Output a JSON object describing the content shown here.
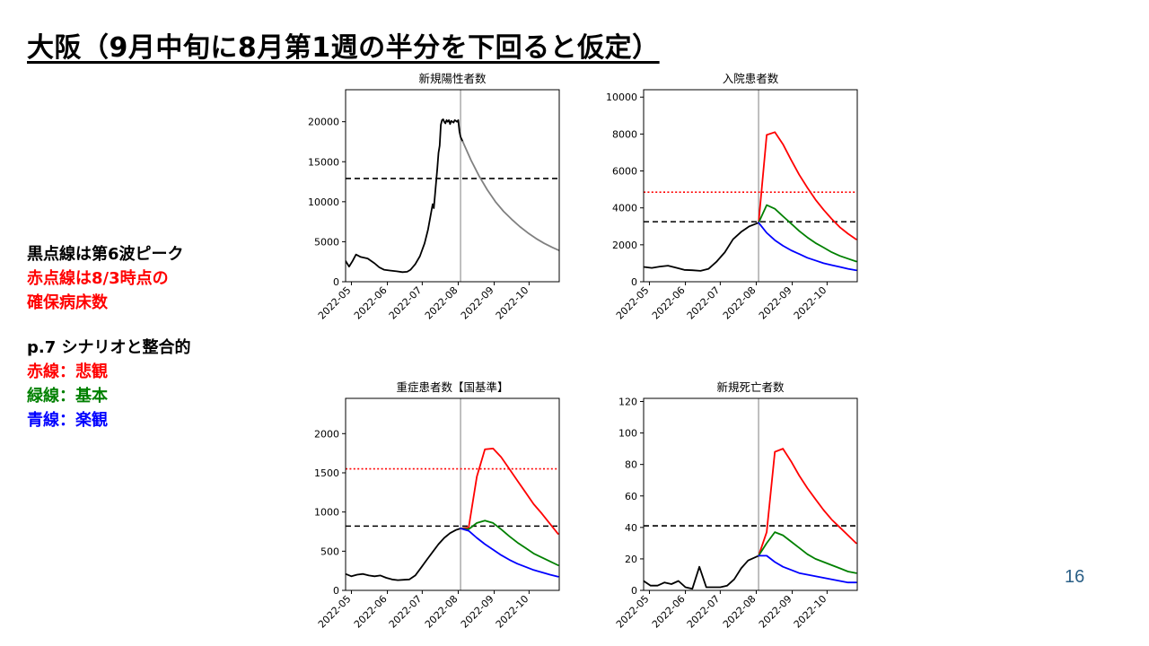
{
  "title": "大阪（9月中旬に8月第1週の半分を下回ると仮定）",
  "notes": {
    "blocks": [
      [
        {
          "text": "黒点線は第6波ピーク",
          "color": "#000000"
        },
        {
          "text": "赤点線は8/3時点の",
          "color": "#ff0000"
        },
        {
          "text": "確保病床数",
          "color": "#ff0000"
        }
      ],
      [
        {
          "text": "p.7 シナリオと整合的",
          "color": "#000000"
        },
        {
          "text": "赤線：悲観",
          "color": "#ff0000"
        },
        {
          "text": "緑線：基本",
          "color": "#008000"
        },
        {
          "text": "青線：楽観",
          "color": "#0000ff"
        }
      ]
    ]
  },
  "page_number": "16",
  "colors": {
    "actual": "#000000",
    "projection": "#808080",
    "pessimistic": "#ff0000",
    "base": "#008000",
    "optimistic": "#0000ff",
    "peak_line": "#000000",
    "bed_capacity_line": "#ff0000",
    "current_date_line": "#808080"
  },
  "chart_data": [
    {
      "id": "new-cases",
      "type": "line",
      "title": "新規陽性者数",
      "xlabel": "",
      "ylabel": "",
      "ylim": [
        0,
        24000
      ],
      "yticks": [
        0,
        5000,
        10000,
        15000,
        20000
      ],
      "xlim": [
        "2022-04-26",
        "2022-10-27"
      ],
      "xticks": [
        "2022-05-01",
        "2022-06-01",
        "2022-07-01",
        "2022-08-01",
        "2022-09-01",
        "2022-10-01"
      ],
      "xtick_labels": [
        "2022-05",
        "2022-06",
        "2022-07",
        "2022-08",
        "2022-09",
        "2022-10"
      ],
      "current_date": "2022-08-03",
      "hlines": [
        {
          "value": 12900,
          "style": "dashed",
          "color_key": "peak_line"
        }
      ],
      "series": [
        {
          "role": "actual",
          "color_key": "actual",
          "x": [
            "2022-04-26",
            "2022-04-29",
            "2022-05-02",
            "2022-05-05",
            "2022-05-09",
            "2022-05-15",
            "2022-05-21",
            "2022-05-25",
            "2022-05-29",
            "2022-06-03",
            "2022-06-09",
            "2022-06-14",
            "2022-06-18",
            "2022-06-21",
            "2022-06-25",
            "2022-06-29",
            "2022-07-03",
            "2022-07-06",
            "2022-07-09",
            "2022-07-10",
            "2022-07-11",
            "2022-07-14",
            "2022-07-15",
            "2022-07-16",
            "2022-07-17",
            "2022-07-18",
            "2022-07-19",
            "2022-07-20",
            "2022-07-21",
            "2022-07-22",
            "2022-07-23",
            "2022-07-24",
            "2022-07-25",
            "2022-07-26",
            "2022-07-27",
            "2022-07-28",
            "2022-07-29",
            "2022-07-30",
            "2022-07-31",
            "2022-08-01",
            "2022-08-02",
            "2022-08-03",
            "2022-08-05"
          ],
          "y": [
            2600,
            1900,
            2600,
            3400,
            3100,
            2900,
            2300,
            1800,
            1500,
            1400,
            1300,
            1200,
            1250,
            1500,
            2200,
            3200,
            4800,
            6500,
            8900,
            9700,
            9200,
            14200,
            16100,
            17000,
            19600,
            20200,
            20300,
            20000,
            19800,
            20200,
            20000,
            20200,
            19700,
            20100,
            20000,
            19900,
            20200,
            20100,
            20000,
            20200,
            18800,
            18100,
            17500
          ]
        },
        {
          "role": "projection",
          "color_key": "projection",
          "x": [
            "2022-08-05",
            "2022-08-12",
            "2022-08-19",
            "2022-08-26",
            "2022-09-02",
            "2022-09-09",
            "2022-09-16",
            "2022-09-23",
            "2022-09-30",
            "2022-10-07",
            "2022-10-14",
            "2022-10-21",
            "2022-10-27"
          ],
          "y": [
            17500,
            15200,
            13200,
            11500,
            10000,
            8800,
            7800,
            6900,
            6100,
            5400,
            4800,
            4300,
            3900
          ]
        }
      ]
    },
    {
      "id": "hospitalized",
      "type": "line",
      "title": "入院患者数",
      "xlabel": "",
      "ylabel": "",
      "ylim": [
        0,
        10400
      ],
      "yticks": [
        0,
        2000,
        4000,
        6000,
        8000,
        10000
      ],
      "xlim": [
        "2022-04-26",
        "2022-10-27"
      ],
      "xticks": [
        "2022-05-01",
        "2022-06-01",
        "2022-07-01",
        "2022-08-01",
        "2022-09-01",
        "2022-10-01"
      ],
      "xtick_labels": [
        "2022-05",
        "2022-06",
        "2022-07",
        "2022-08",
        "2022-09",
        "2022-10"
      ],
      "current_date": "2022-08-03",
      "hlines": [
        {
          "value": 4850,
          "style": "dotted",
          "color_key": "bed_capacity_line"
        },
        {
          "value": 3250,
          "style": "dashed",
          "color_key": "peak_line"
        }
      ],
      "series": [
        {
          "role": "actual",
          "color_key": "actual",
          "x": [
            "2022-04-26",
            "2022-05-03",
            "2022-05-10",
            "2022-05-17",
            "2022-05-24",
            "2022-05-31",
            "2022-06-07",
            "2022-06-14",
            "2022-06-21",
            "2022-06-28",
            "2022-07-05",
            "2022-07-12",
            "2022-07-19",
            "2022-07-26",
            "2022-08-03"
          ],
          "y": [
            800,
            750,
            820,
            870,
            760,
            640,
            620,
            590,
            700,
            1100,
            1600,
            2300,
            2700,
            3000,
            3200
          ]
        },
        {
          "role": "pessimistic",
          "color_key": "pessimistic",
          "x": [
            "2022-08-03",
            "2022-08-10",
            "2022-08-17",
            "2022-08-24",
            "2022-08-31",
            "2022-09-07",
            "2022-09-14",
            "2022-09-21",
            "2022-09-28",
            "2022-10-05",
            "2022-10-12",
            "2022-10-19",
            "2022-10-26"
          ],
          "y": [
            3200,
            7950,
            8100,
            7450,
            6600,
            5800,
            5100,
            4450,
            3900,
            3400,
            2950,
            2600,
            2300
          ]
        },
        {
          "role": "base",
          "color_key": "base",
          "x": [
            "2022-08-03",
            "2022-08-10",
            "2022-08-17",
            "2022-08-24",
            "2022-08-31",
            "2022-09-07",
            "2022-09-14",
            "2022-09-21",
            "2022-09-28",
            "2022-10-05",
            "2022-10-12",
            "2022-10-19",
            "2022-10-26"
          ],
          "y": [
            3200,
            4150,
            3950,
            3550,
            3150,
            2750,
            2400,
            2100,
            1850,
            1600,
            1400,
            1250,
            1100
          ]
        },
        {
          "role": "optimistic",
          "color_key": "optimistic",
          "x": [
            "2022-08-03",
            "2022-08-10",
            "2022-08-17",
            "2022-08-24",
            "2022-08-31",
            "2022-09-07",
            "2022-09-14",
            "2022-09-21",
            "2022-09-28",
            "2022-10-05",
            "2022-10-12",
            "2022-10-19",
            "2022-10-26"
          ],
          "y": [
            3200,
            2650,
            2250,
            1950,
            1700,
            1500,
            1300,
            1150,
            1000,
            900,
            800,
            700,
            620
          ]
        }
      ]
    },
    {
      "id": "severe-patients",
      "type": "line",
      "title": "重症患者数【国基準】",
      "xlabel": "",
      "ylabel": "",
      "ylim": [
        0,
        2450
      ],
      "yticks": [
        0,
        500,
        1000,
        1500,
        2000
      ],
      "xlim": [
        "2022-04-26",
        "2022-10-27"
      ],
      "xticks": [
        "2022-05-01",
        "2022-06-01",
        "2022-07-01",
        "2022-08-01",
        "2022-09-01",
        "2022-10-01"
      ],
      "xtick_labels": [
        "2022-05",
        "2022-06",
        "2022-07",
        "2022-08",
        "2022-09",
        "2022-10"
      ],
      "current_date": "2022-08-03",
      "hlines": [
        {
          "value": 1550,
          "style": "dotted",
          "color_key": "bed_capacity_line"
        },
        {
          "value": 820,
          "style": "dashed",
          "color_key": "peak_line"
        }
      ],
      "series": [
        {
          "role": "actual",
          "color_key": "actual",
          "x": [
            "2022-04-26",
            "2022-05-01",
            "2022-05-06",
            "2022-05-11",
            "2022-05-16",
            "2022-05-21",
            "2022-05-26",
            "2022-05-31",
            "2022-06-05",
            "2022-06-10",
            "2022-06-15",
            "2022-06-20",
            "2022-06-25",
            "2022-06-30",
            "2022-07-05",
            "2022-07-10",
            "2022-07-15",
            "2022-07-20",
            "2022-07-25",
            "2022-07-30",
            "2022-08-03"
          ],
          "y": [
            210,
            180,
            200,
            210,
            190,
            180,
            190,
            160,
            140,
            130,
            135,
            140,
            190,
            290,
            390,
            490,
            590,
            670,
            730,
            770,
            790
          ]
        },
        {
          "role": "pessimistic",
          "color_key": "pessimistic",
          "x": [
            "2022-08-03",
            "2022-08-10",
            "2022-08-17",
            "2022-08-24",
            "2022-08-31",
            "2022-09-07",
            "2022-09-14",
            "2022-09-21",
            "2022-09-28",
            "2022-10-05",
            "2022-10-12",
            "2022-10-19",
            "2022-10-26"
          ],
          "y": [
            790,
            800,
            1450,
            1800,
            1810,
            1700,
            1550,
            1400,
            1250,
            1100,
            980,
            850,
            720
          ]
        },
        {
          "role": "base",
          "color_key": "base",
          "x": [
            "2022-08-03",
            "2022-08-10",
            "2022-08-17",
            "2022-08-24",
            "2022-08-31",
            "2022-09-07",
            "2022-09-14",
            "2022-09-21",
            "2022-09-28",
            "2022-10-05",
            "2022-10-12",
            "2022-10-19",
            "2022-10-26"
          ],
          "y": [
            790,
            780,
            860,
            890,
            860,
            780,
            690,
            610,
            540,
            470,
            420,
            370,
            320
          ]
        },
        {
          "role": "optimistic",
          "color_key": "optimistic",
          "x": [
            "2022-08-03",
            "2022-08-10",
            "2022-08-17",
            "2022-08-24",
            "2022-08-31",
            "2022-09-07",
            "2022-09-14",
            "2022-09-21",
            "2022-09-28",
            "2022-10-05",
            "2022-10-12",
            "2022-10-19",
            "2022-10-26"
          ],
          "y": [
            790,
            760,
            670,
            590,
            520,
            450,
            390,
            340,
            300,
            260,
            230,
            200,
            175
          ]
        }
      ]
    },
    {
      "id": "new-deaths",
      "type": "line",
      "title": "新規死亡者数",
      "xlabel": "",
      "ylabel": "",
      "ylim": [
        0,
        122
      ],
      "yticks": [
        0,
        20,
        40,
        60,
        80,
        100,
        120
      ],
      "xlim": [
        "2022-04-26",
        "2022-10-27"
      ],
      "xticks": [
        "2022-05-01",
        "2022-06-01",
        "2022-07-01",
        "2022-08-01",
        "2022-09-01",
        "2022-10-01"
      ],
      "xtick_labels": [
        "2022-05",
        "2022-06",
        "2022-07",
        "2022-08",
        "2022-09",
        "2022-10"
      ],
      "current_date": "2022-08-03",
      "hlines": [
        {
          "value": 41,
          "style": "dashed",
          "color_key": "peak_line"
        }
      ],
      "series": [
        {
          "role": "actual",
          "color_key": "actual",
          "x": [
            "2022-04-26",
            "2022-05-02",
            "2022-05-08",
            "2022-05-14",
            "2022-05-20",
            "2022-05-26",
            "2022-06-01",
            "2022-06-07",
            "2022-06-13",
            "2022-06-19",
            "2022-06-25",
            "2022-07-01",
            "2022-07-07",
            "2022-07-13",
            "2022-07-19",
            "2022-07-25",
            "2022-08-03"
          ],
          "y": [
            6,
            3,
            3,
            5,
            4,
            6,
            2,
            1,
            15,
            2,
            2,
            2,
            3,
            7,
            14,
            19,
            22
          ]
        },
        {
          "role": "pessimistic",
          "color_key": "pessimistic",
          "x": [
            "2022-08-03",
            "2022-08-10",
            "2022-08-17",
            "2022-08-24",
            "2022-08-31",
            "2022-09-07",
            "2022-09-14",
            "2022-09-21",
            "2022-09-28",
            "2022-10-05",
            "2022-10-12",
            "2022-10-19",
            "2022-10-26"
          ],
          "y": [
            22,
            37,
            88,
            90,
            82,
            73,
            65,
            58,
            51,
            45,
            40,
            35,
            30
          ]
        },
        {
          "role": "base",
          "color_key": "base",
          "x": [
            "2022-08-03",
            "2022-08-10",
            "2022-08-17",
            "2022-08-24",
            "2022-08-31",
            "2022-09-07",
            "2022-09-14",
            "2022-09-21",
            "2022-09-28",
            "2022-10-05",
            "2022-10-12",
            "2022-10-19",
            "2022-10-26"
          ],
          "y": [
            22,
            30,
            37,
            35,
            31,
            27,
            23,
            20,
            18,
            16,
            14,
            12,
            11
          ]
        },
        {
          "role": "optimistic",
          "color_key": "optimistic",
          "x": [
            "2022-08-03",
            "2022-08-10",
            "2022-08-17",
            "2022-08-24",
            "2022-08-31",
            "2022-09-07",
            "2022-09-14",
            "2022-09-21",
            "2022-09-28",
            "2022-10-05",
            "2022-10-12",
            "2022-10-19",
            "2022-10-26"
          ],
          "y": [
            22,
            22,
            18,
            15,
            13,
            11,
            10,
            9,
            8,
            7,
            6,
            5,
            5
          ]
        }
      ]
    }
  ]
}
